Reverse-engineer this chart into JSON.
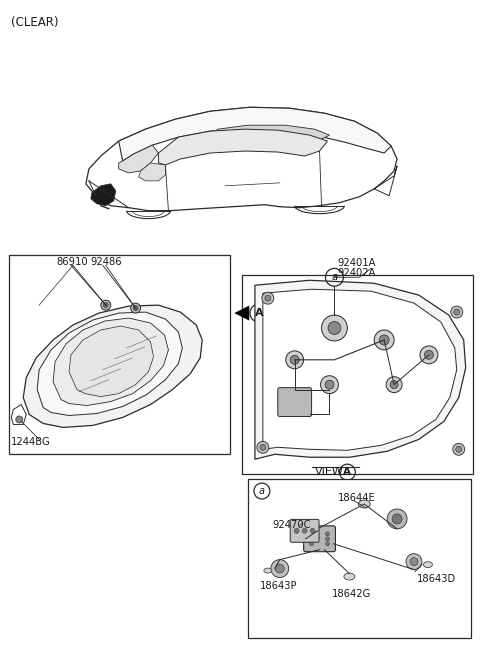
{
  "bg_color": "#ffffff",
  "line_color": "#2a2a2a",
  "text_color": "#1a1a1a",
  "fig_width": 4.8,
  "fig_height": 6.55,
  "dpi": 100,
  "labels": {
    "clear": "(CLEAR)",
    "86910": "86910",
    "92486": "92486",
    "92401A": "92401A",
    "92402A": "92402A",
    "1244BG": "1244BG",
    "18644E": "18644E",
    "92470C": "92470C",
    "18643P": "18643P",
    "18642G": "18642G",
    "18643D": "18643D"
  }
}
